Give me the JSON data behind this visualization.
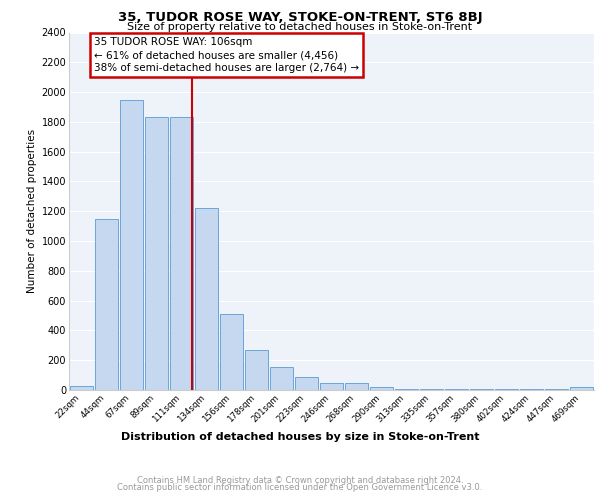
{
  "title": "35, TUDOR ROSE WAY, STOKE-ON-TRENT, ST6 8BJ",
  "subtitle": "Size of property relative to detached houses in Stoke-on-Trent",
  "xlabel": "Distribution of detached houses by size in Stoke-on-Trent",
  "ylabel": "Number of detached properties",
  "categories": [
    "22sqm",
    "44sqm",
    "67sqm",
    "89sqm",
    "111sqm",
    "134sqm",
    "156sqm",
    "178sqm",
    "201sqm",
    "223sqm",
    "246sqm",
    "268sqm",
    "290sqm",
    "313sqm",
    "335sqm",
    "357sqm",
    "380sqm",
    "402sqm",
    "424sqm",
    "447sqm",
    "469sqm"
  ],
  "values": [
    30,
    1150,
    1950,
    1830,
    1830,
    1220,
    510,
    270,
    155,
    90,
    50,
    45,
    20,
    10,
    5,
    5,
    5,
    5,
    5,
    5,
    20
  ],
  "bar_color": "#c5d8ef",
  "bar_edge_color": "#5b9bd5",
  "annotation_title": "35 TUDOR ROSE WAY: 106sqm",
  "annotation_line1": "← 61% of detached houses are smaller (4,456)",
  "annotation_line2": "38% of semi-detached houses are larger (2,764) →",
  "vline_color": "#cc0000",
  "annotation_box_color": "#cc0000",
  "bg_color": "#eef2f9",
  "grid_color": "#ffffff",
  "footer1": "Contains HM Land Registry data © Crown copyright and database right 2024.",
  "footer2": "Contains public sector information licensed under the Open Government Licence v3.0.",
  "ylim": [
    0,
    2400
  ],
  "yticks": [
    0,
    200,
    400,
    600,
    800,
    1000,
    1200,
    1400,
    1600,
    1800,
    2000,
    2200,
    2400
  ],
  "vline_x_index": 4.43
}
